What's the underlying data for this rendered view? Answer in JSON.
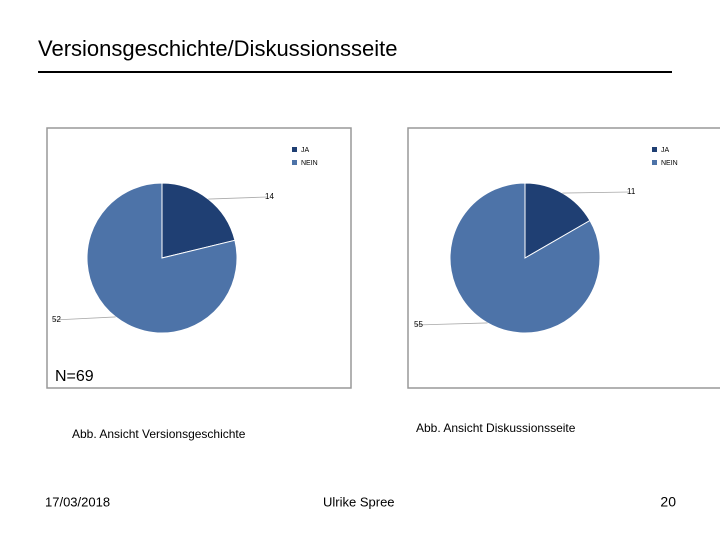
{
  "title": "Versionsgeschichte/Diskussionsseite",
  "chart_data": [
    {
      "type": "pie",
      "categories": [
        "JA",
        "NEIN"
      ],
      "values": [
        14,
        52
      ],
      "colors": [
        "#1f3f73",
        "#4d73a8"
      ],
      "annotation": "N=69",
      "caption": "Abb. Ansicht Versionsgeschichte"
    },
    {
      "type": "pie",
      "categories": [
        "JA",
        "NEIN"
      ],
      "values": [
        11,
        55
      ],
      "colors": [
        "#1f3f73",
        "#4d73a8"
      ],
      "caption": "Abb. Ansicht Diskussionsseite"
    }
  ],
  "footer": {
    "date": "17/03/2018",
    "author": "Ulrike Spree",
    "page": "20"
  }
}
